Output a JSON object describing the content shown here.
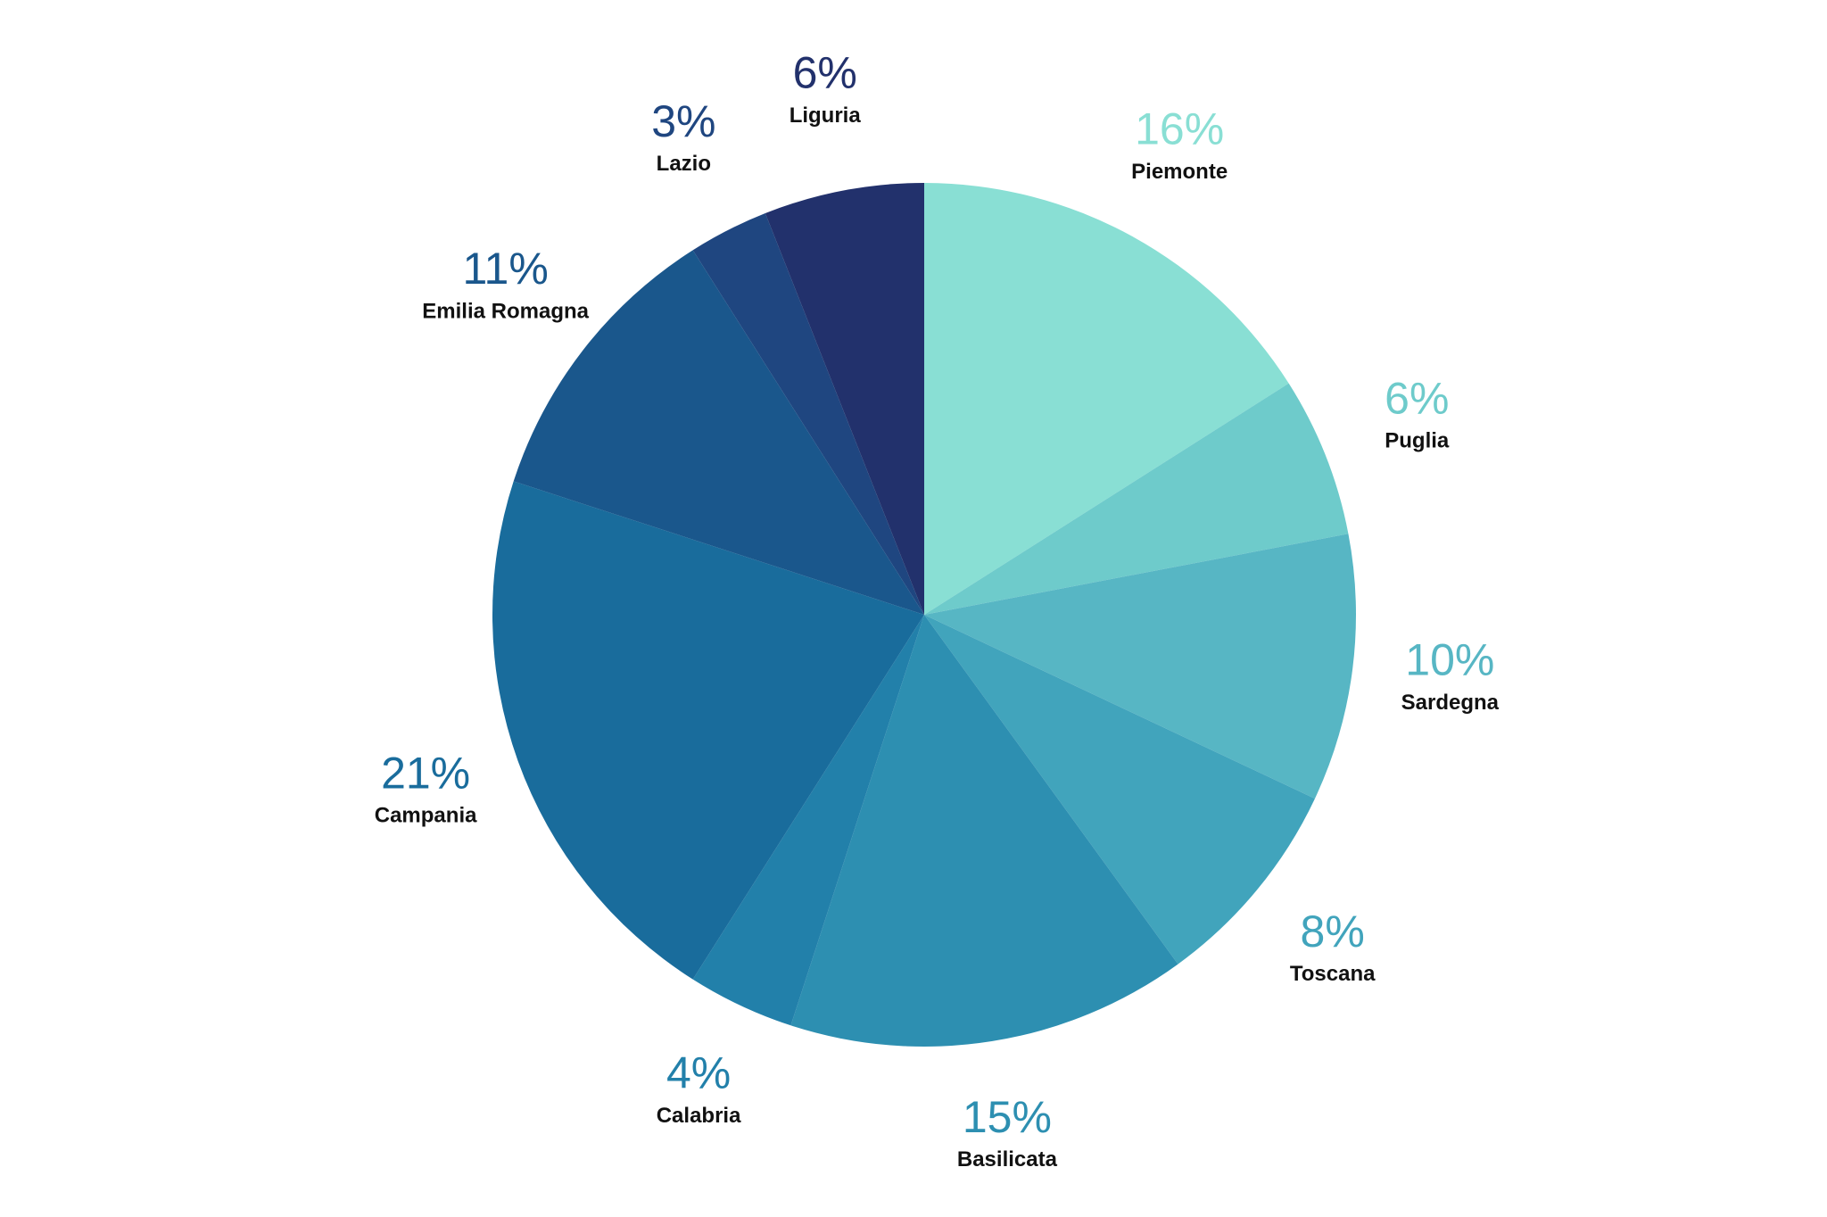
{
  "chart_data": {
    "type": "pie",
    "categories": [
      "Piemonte",
      "Puglia",
      "Sardegna",
      "Toscana",
      "Basilicata",
      "Calabria",
      "Campania",
      "Emilia Romagna",
      "Lazio",
      "Liguria"
    ],
    "values": [
      16,
      6,
      10,
      8,
      15,
      4,
      21,
      11,
      3,
      6
    ],
    "value_labels": [
      "16%",
      "6%",
      "10%",
      "8%",
      "15%",
      "4%",
      "21%",
      "11%",
      "3%",
      "6%"
    ],
    "colors": [
      "#89dfd4",
      "#6ecbcb",
      "#57b6c4",
      "#41a4bc",
      "#2d8fb1",
      "#2280aa",
      "#196c9c",
      "#1a578c",
      "#1f4680",
      "#22316c"
    ]
  }
}
